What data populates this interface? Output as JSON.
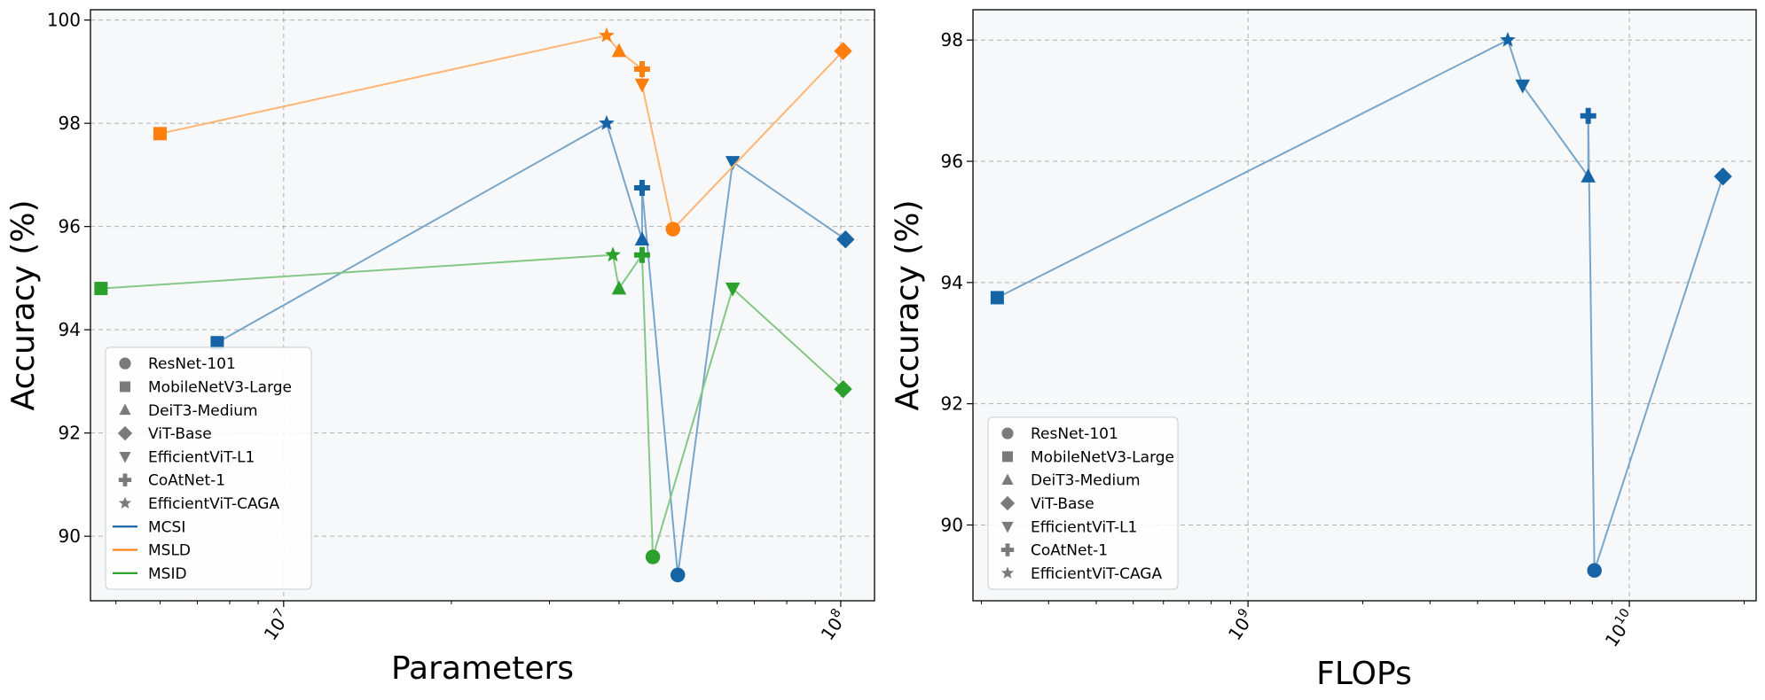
{
  "chart_data": [
    {
      "type": "scatter",
      "xscale": "log",
      "xlabel": "Parameters",
      "ylabel": "Accuracy (%)",
      "xlim": [
        4500000,
        115000000
      ],
      "ylim": [
        88.75,
        100.2
      ],
      "yticks": [
        "90",
        "92",
        "94",
        "96",
        "98",
        "100"
      ],
      "xticks": [
        {
          "value": 10000000,
          "base": "10",
          "exp": "7"
        },
        {
          "value": 100000000,
          "base": "10",
          "exp": "8"
        }
      ],
      "legend_position": "lower-left",
      "legend": {
        "markers": [
          {
            "shape": "circle",
            "label": "ResNet-101"
          },
          {
            "shape": "square",
            "label": "MobileNetV3-Large"
          },
          {
            "shape": "triangle-up",
            "label": "DeiT3-Medium"
          },
          {
            "shape": "diamond",
            "label": "ViT-Base"
          },
          {
            "shape": "triangle-down",
            "label": "EfficientViT-L1"
          },
          {
            "shape": "plus",
            "label": "CoAtNet-1"
          },
          {
            "shape": "star",
            "label": "EfficientViT-CAGA"
          }
        ],
        "lines": [
          {
            "series": "MCSI",
            "label": "MCSI"
          },
          {
            "series": "MSLD",
            "label": "MSLD"
          },
          {
            "series": "MSID",
            "label": "MSID"
          }
        ]
      },
      "series": [
        {
          "name": "MCSI",
          "color": "#1565a6",
          "points": [
            {
              "model": "MobileNetV3-Large",
              "shape": "square",
              "x": 7600000,
              "y": 93.75
            },
            {
              "model": "EfficientViT-CAGA",
              "shape": "star",
              "x": 38000000,
              "y": 98.0
            },
            {
              "model": "DeiT3-Medium",
              "shape": "triangle-up",
              "x": 44000000,
              "y": 95.75
            },
            {
              "model": "CoAtNet-1",
              "shape": "plus",
              "x": 44000000,
              "y": 96.75
            },
            {
              "model": "ResNet-101",
              "shape": "circle",
              "x": 51000000,
              "y": 89.25
            },
            {
              "model": "EfficientViT-L1",
              "shape": "triangle-down",
              "x": 64000000,
              "y": 97.25
            },
            {
              "model": "ViT-Base",
              "shape": "diamond",
              "x": 102000000,
              "y": 95.75
            }
          ]
        },
        {
          "name": "MSLD",
          "color": "#ff7f0e",
          "points": [
            {
              "model": "MobileNetV3-Large",
              "shape": "square",
              "x": 6000000,
              "y": 97.8
            },
            {
              "model": "EfficientViT-CAGA",
              "shape": "star",
              "x": 38000000,
              "y": 99.7
            },
            {
              "model": "DeiT3-Medium",
              "shape": "triangle-up",
              "x": 40000000,
              "y": 99.4
            },
            {
              "model": "CoAtNet-1",
              "shape": "plus",
              "x": 44000000,
              "y": 99.05
            },
            {
              "model": "EfficientViT-L1",
              "shape": "triangle-down",
              "x": 44000000,
              "y": 98.75
            },
            {
              "model": "ResNet-101",
              "shape": "circle",
              "x": 50000000,
              "y": 95.95
            },
            {
              "model": "ViT-Base",
              "shape": "diamond",
              "x": 101000000,
              "y": 99.4
            }
          ]
        },
        {
          "name": "MSID",
          "color": "#2ca02c",
          "points": [
            {
              "model": "MobileNetV3-Large",
              "shape": "square",
              "x": 4700000,
              "y": 94.8
            },
            {
              "model": "EfficientViT-CAGA",
              "shape": "star",
              "x": 39000000,
              "y": 95.45
            },
            {
              "model": "DeiT3-Medium",
              "shape": "triangle-up",
              "x": 40000000,
              "y": 94.8
            },
            {
              "model": "CoAtNet-1",
              "shape": "plus",
              "x": 44000000,
              "y": 95.45
            },
            {
              "model": "ResNet-101",
              "shape": "circle",
              "x": 46000000,
              "y": 89.6
            },
            {
              "model": "EfficientViT-L1",
              "shape": "triangle-down",
              "x": 64000000,
              "y": 94.8
            },
            {
              "model": "ViT-Base",
              "shape": "diamond",
              "x": 101000000,
              "y": 92.85
            }
          ]
        }
      ]
    },
    {
      "type": "scatter",
      "xscale": "log",
      "xlabel": "FLOPs",
      "ylabel": "Accuracy (%)",
      "xlim": [
        190000000,
        21500000000
      ],
      "ylim": [
        88.75,
        98.5
      ],
      "yticks": [
        "90",
        "92",
        "94",
        "96",
        "98"
      ],
      "xticks": [
        {
          "value": 1000000000,
          "base": "10",
          "exp": "9"
        },
        {
          "value": 10000000000,
          "base": "10",
          "exp": "10"
        }
      ],
      "legend_position": "lower-left",
      "legend": {
        "markers": [
          {
            "shape": "circle",
            "label": "ResNet-101"
          },
          {
            "shape": "square",
            "label": "MobileNetV3-Large"
          },
          {
            "shape": "triangle-up",
            "label": "DeiT3-Medium"
          },
          {
            "shape": "diamond",
            "label": "ViT-Base"
          },
          {
            "shape": "triangle-down",
            "label": "EfficientViT-L1"
          },
          {
            "shape": "plus",
            "label": "CoAtNet-1"
          },
          {
            "shape": "star",
            "label": "EfficientViT-CAGA"
          }
        ],
        "lines": []
      },
      "series": [
        {
          "name": "MCSI",
          "color": "#1565a6",
          "points": [
            {
              "model": "MobileNetV3-Large",
              "shape": "square",
              "x": 220000000,
              "y": 93.75
            },
            {
              "model": "EfficientViT-CAGA",
              "shape": "star",
              "x": 4800000000,
              "y": 98.0
            },
            {
              "model": "EfficientViT-L1",
              "shape": "triangle-down",
              "x": 5250000000,
              "y": 97.25
            },
            {
              "model": "DeiT3-Medium",
              "shape": "triangle-up",
              "x": 7800000000,
              "y": 95.75
            },
            {
              "model": "CoAtNet-1",
              "shape": "plus",
              "x": 7800000000,
              "y": 96.75
            },
            {
              "model": "ResNet-101",
              "shape": "circle",
              "x": 8100000000,
              "y": 89.25
            },
            {
              "model": "ViT-Base",
              "shape": "diamond",
              "x": 17600000000,
              "y": 95.75
            }
          ]
        }
      ]
    }
  ]
}
